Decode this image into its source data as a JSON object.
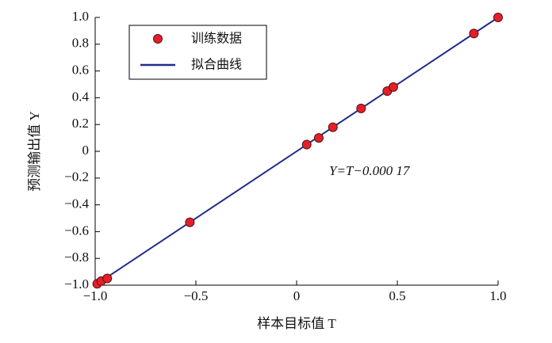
{
  "chart_data": {
    "type": "scatter",
    "x_label": "样本目标值 T",
    "y_label": "预测输出值 Y",
    "annotation": "Y=T−0.000 17",
    "series": [
      {
        "name": "训练数据",
        "style": "markers",
        "color": "#e3202a",
        "x": [
          -0.99,
          -0.97,
          -0.94,
          -0.53,
          0.05,
          0.11,
          0.18,
          0.32,
          0.45,
          0.48,
          0.88,
          1.0
        ],
        "values": [
          -0.99,
          -0.97,
          -0.95,
          -0.53,
          0.05,
          0.1,
          0.18,
          0.32,
          0.45,
          0.48,
          0.88,
          1.0
        ]
      },
      {
        "name": "拟合曲线",
        "style": "line",
        "color": "#1f2d8c",
        "x": [
          -1.0,
          1.0
        ],
        "values": [
          -1.0,
          1.0
        ]
      }
    ],
    "xlim": [
      -1.0,
      1.0
    ],
    "xticks": [
      {
        "value": -1.0,
        "label": "−1.0"
      },
      {
        "value": -0.5,
        "label": "−0.5"
      },
      0,
      0.5,
      {
        "value": 1.0,
        "label": "1.0"
      }
    ],
    "ylim": [
      -1.0,
      1.0
    ],
    "yticks": [
      {
        "value": -1.0,
        "label": "−1.0"
      },
      {
        "value": -0.8,
        "label": "−0.8"
      },
      {
        "value": -0.6,
        "label": "−0.6"
      },
      {
        "value": -0.4,
        "label": "−0.4"
      },
      {
        "value": -0.2,
        "label": "−0.2"
      },
      0,
      0.2,
      0.4,
      0.6,
      0.8,
      {
        "value": 1.0,
        "label": "1.0"
      }
    ],
    "legend": "upper-left"
  }
}
